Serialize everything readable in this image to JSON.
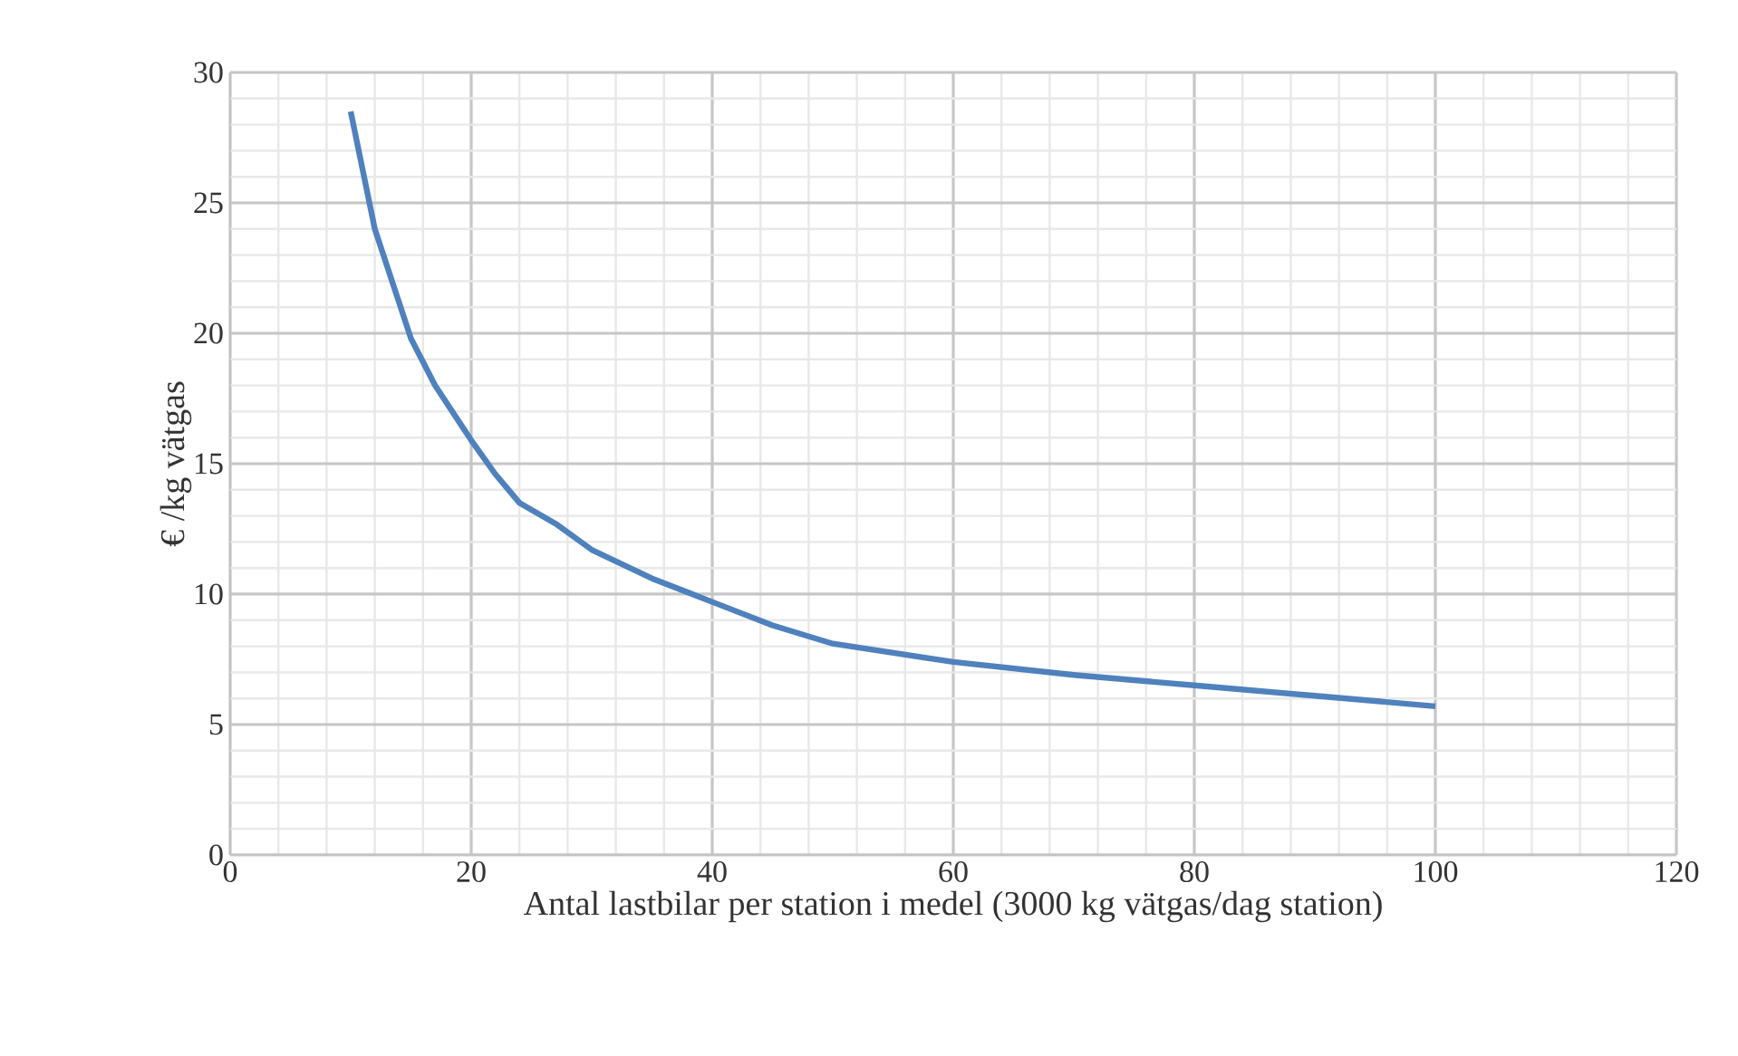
{
  "chart_data": {
    "type": "line",
    "xlabel": "Antal lastbilar per station i medel (3000 kg vätgas/dag station)",
    "ylabel": "€ /kg vätgas",
    "xlim": [
      0,
      120
    ],
    "xticks": [
      0,
      20,
      40,
      60,
      80,
      100,
      120
    ],
    "ylim": [
      0,
      30
    ],
    "yticks": [
      0,
      5,
      10,
      15,
      20,
      25,
      30
    ],
    "grid": true,
    "series": [
      {
        "color": "#4f81bd",
        "x": [
          10,
          12,
          15,
          17,
          20,
          22,
          24,
          27,
          30,
          35,
          40,
          45,
          50,
          60,
          70,
          80,
          90,
          100
        ],
        "values": [
          28.5,
          24,
          19.8,
          18,
          15.9,
          14.6,
          13.5,
          12.7,
          11.7,
          10.6,
          9.7,
          8.8,
          8.1,
          7.4,
          6.9,
          6.5,
          6.1,
          5.7
        ]
      }
    ]
  }
}
